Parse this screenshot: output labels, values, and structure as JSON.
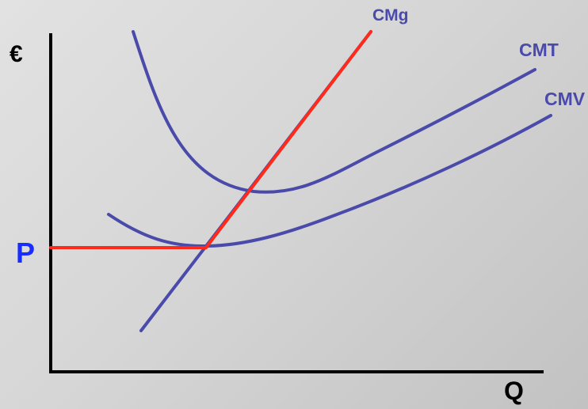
{
  "labels": {
    "currency": "€",
    "price": "P",
    "quantity": "Q",
    "cmg": "CMg",
    "cmt": "CMT",
    "cmv": "CMV"
  },
  "colors": {
    "curve": "#4a4aaa",
    "highlight": "#ff2a1a",
    "price_label": "#1a2cff",
    "axis": "#000000",
    "background": "#d4d4d4"
  }
}
